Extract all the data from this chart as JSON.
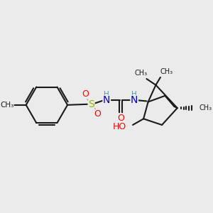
{
  "background_color": "#ebebeb",
  "bond_color": "#1a1a1a",
  "atom_colors": {
    "N": "#0000cc",
    "O": "#ff0000",
    "S": "#aaaa00",
    "C": "#1a1a1a",
    "H": "#4a9a9a"
  },
  "figsize": [
    3.0,
    3.0
  ],
  "dpi": 100,
  "xlim": [
    20,
    280
  ],
  "ylim": [
    50,
    270
  ]
}
